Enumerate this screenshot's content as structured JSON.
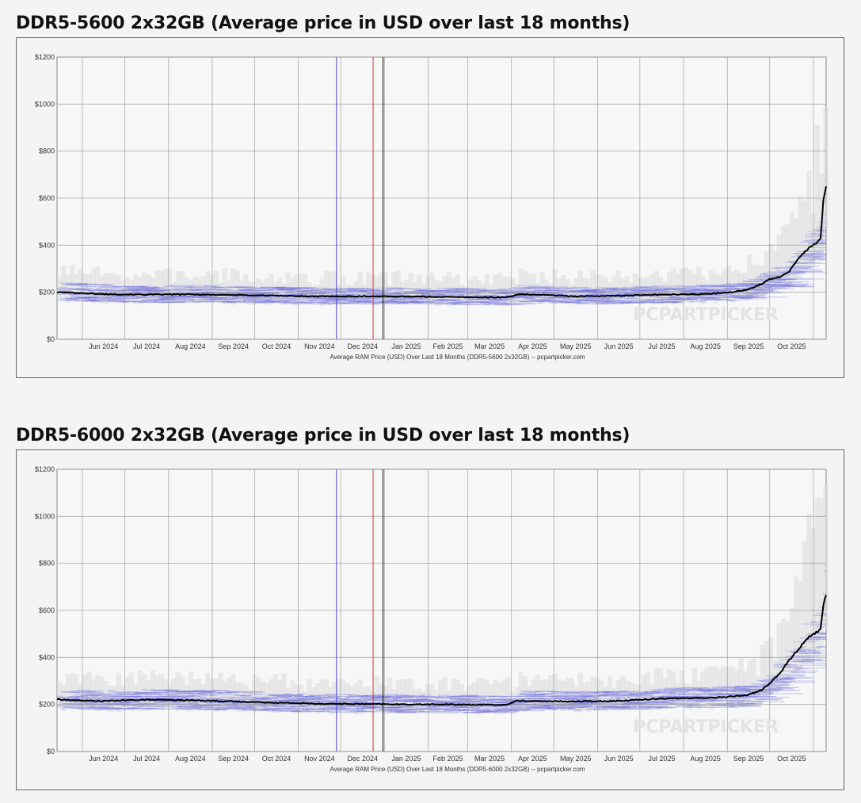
{
  "charts": [
    {
      "title": "DDR5-5600 2x32GB (Average price in USD over last 18 months)",
      "caption": "Average RAM Price (USD) Over Last 18 Months (DDR5-5600 2x32GB) -- pcpartpicker.com",
      "watermark": "PCPARTPICKER"
    },
    {
      "title": "DDR5-6000 2x32GB (Average price in USD over last 18 months)",
      "caption": "Average RAM Price (USD) Over Last 18 Months (DDR5-6000 2x32GB) -- pcpartpicker.com",
      "watermark": "PCPARTPICKER"
    }
  ],
  "colors": {
    "average_line": "#000000",
    "price_bands_blue": "#6a6ae0",
    "price_bands_gray": "#dcdcdc",
    "marker_blue": "#5555cc",
    "marker_red": "#dd4444",
    "marker_black": "#222222",
    "grid": "#999999"
  },
  "chart_data": [
    {
      "type": "line",
      "title": "DDR5-5600 2x32GB (Average price in USD over last 18 months)",
      "xlabel": "Average RAM Price (USD) Over Last 18 Months (DDR5-5600 2x32GB) -- pcpartpicker.com",
      "ylabel": "",
      "x_range": [
        "2024-05-14",
        "2025-11-10"
      ],
      "ylim": [
        0,
        1200
      ],
      "y_ticks": [
        0,
        200,
        400,
        600,
        800,
        1000,
        1200
      ],
      "y_tick_labels": [
        "$0",
        "$200",
        "$400",
        "$600",
        "$800",
        "$1000",
        "$1200"
      ],
      "x_tick_labels": [
        "Jun 2024",
        "Jul 2024",
        "Aug 2024",
        "Sep 2024",
        "Oct 2024",
        "Nov 2024",
        "Dec 2024",
        "Jan 2025",
        "Feb 2025",
        "Mar 2025",
        "Apr 2025",
        "May 2025",
        "Jun 2025",
        "Jul 2025",
        "Aug 2025",
        "Sep 2025",
        "Oct 2025"
      ],
      "grid": true,
      "vertical_markers": [
        {
          "x": "2024-11-28",
          "color": "blue"
        },
        {
          "x": "2024-12-24",
          "color": "red"
        },
        {
          "x": "2024-12-31",
          "color": "black"
        }
      ],
      "series": [
        {
          "style": "average",
          "x": [
            "2024-05-14",
            "2024-05-25",
            "2024-06-15",
            "2024-07-15",
            "2024-08-15",
            "2024-09-15",
            "2024-10-15",
            "2024-11-15",
            "2024-12-15",
            "2025-01-15",
            "2025-02-15",
            "2025-03-15",
            "2025-03-28",
            "2025-04-05",
            "2025-04-20",
            "2025-05-15",
            "2025-06-15",
            "2025-07-15",
            "2025-08-15",
            "2025-09-01",
            "2025-09-15",
            "2025-09-25",
            "2025-10-01",
            "2025-10-08",
            "2025-10-15",
            "2025-10-22",
            "2025-10-29",
            "2025-11-03",
            "2025-11-06",
            "2025-11-08",
            "2025-11-10"
          ],
          "values": [
            200,
            198,
            192,
            190,
            191,
            188,
            186,
            182,
            183,
            182,
            180,
            178,
            178,
            190,
            190,
            183,
            185,
            190,
            192,
            198,
            210,
            235,
            255,
            265,
            290,
            350,
            390,
            410,
            430,
            590,
            645
          ]
        }
      ]
    },
    {
      "type": "line",
      "title": "DDR5-6000 2x32GB (Average price in USD over last 18 months)",
      "xlabel": "Average RAM Price (USD) Over Last 18 Months (DDR5-6000 2x32GB) -- pcpartpicker.com",
      "ylabel": "",
      "x_range": [
        "2024-05-14",
        "2025-11-10"
      ],
      "ylim": [
        0,
        1200
      ],
      "y_ticks": [
        0,
        200,
        400,
        600,
        800,
        1000,
        1200
      ],
      "y_tick_labels": [
        "$0",
        "$200",
        "$400",
        "$600",
        "$800",
        "$1000",
        "$1200"
      ],
      "x_tick_labels": [
        "Jun 2024",
        "Jul 2024",
        "Aug 2024",
        "Sep 2024",
        "Oct 2024",
        "Nov 2024",
        "Dec 2024",
        "Jan 2025",
        "Feb 2025",
        "Mar 2025",
        "Apr 2025",
        "May 2025",
        "Jun 2025",
        "Jul 2025",
        "Aug 2025",
        "Sep 2025",
        "Oct 2025"
      ],
      "grid": true,
      "vertical_markers": [
        {
          "x": "2024-11-28",
          "color": "blue"
        },
        {
          "x": "2024-12-24",
          "color": "red"
        },
        {
          "x": "2024-12-31",
          "color": "black"
        }
      ],
      "series": [
        {
          "style": "average",
          "x": [
            "2024-05-14",
            "2024-05-25",
            "2024-06-15",
            "2024-07-15",
            "2024-08-15",
            "2024-09-15",
            "2024-10-15",
            "2024-11-15",
            "2024-12-15",
            "2025-01-15",
            "2025-02-15",
            "2025-03-15",
            "2025-03-28",
            "2025-04-05",
            "2025-04-20",
            "2025-05-15",
            "2025-06-15",
            "2025-07-15",
            "2025-08-15",
            "2025-09-01",
            "2025-09-15",
            "2025-09-25",
            "2025-10-01",
            "2025-10-08",
            "2025-10-15",
            "2025-10-22",
            "2025-10-29",
            "2025-11-03",
            "2025-11-06",
            "2025-11-08",
            "2025-11-10"
          ],
          "values": [
            222,
            218,
            214,
            220,
            218,
            213,
            208,
            203,
            202,
            200,
            200,
            198,
            198,
            215,
            214,
            213,
            215,
            225,
            228,
            232,
            240,
            260,
            290,
            330,
            390,
            440,
            490,
            505,
            520,
            620,
            670
          ]
        }
      ]
    }
  ]
}
